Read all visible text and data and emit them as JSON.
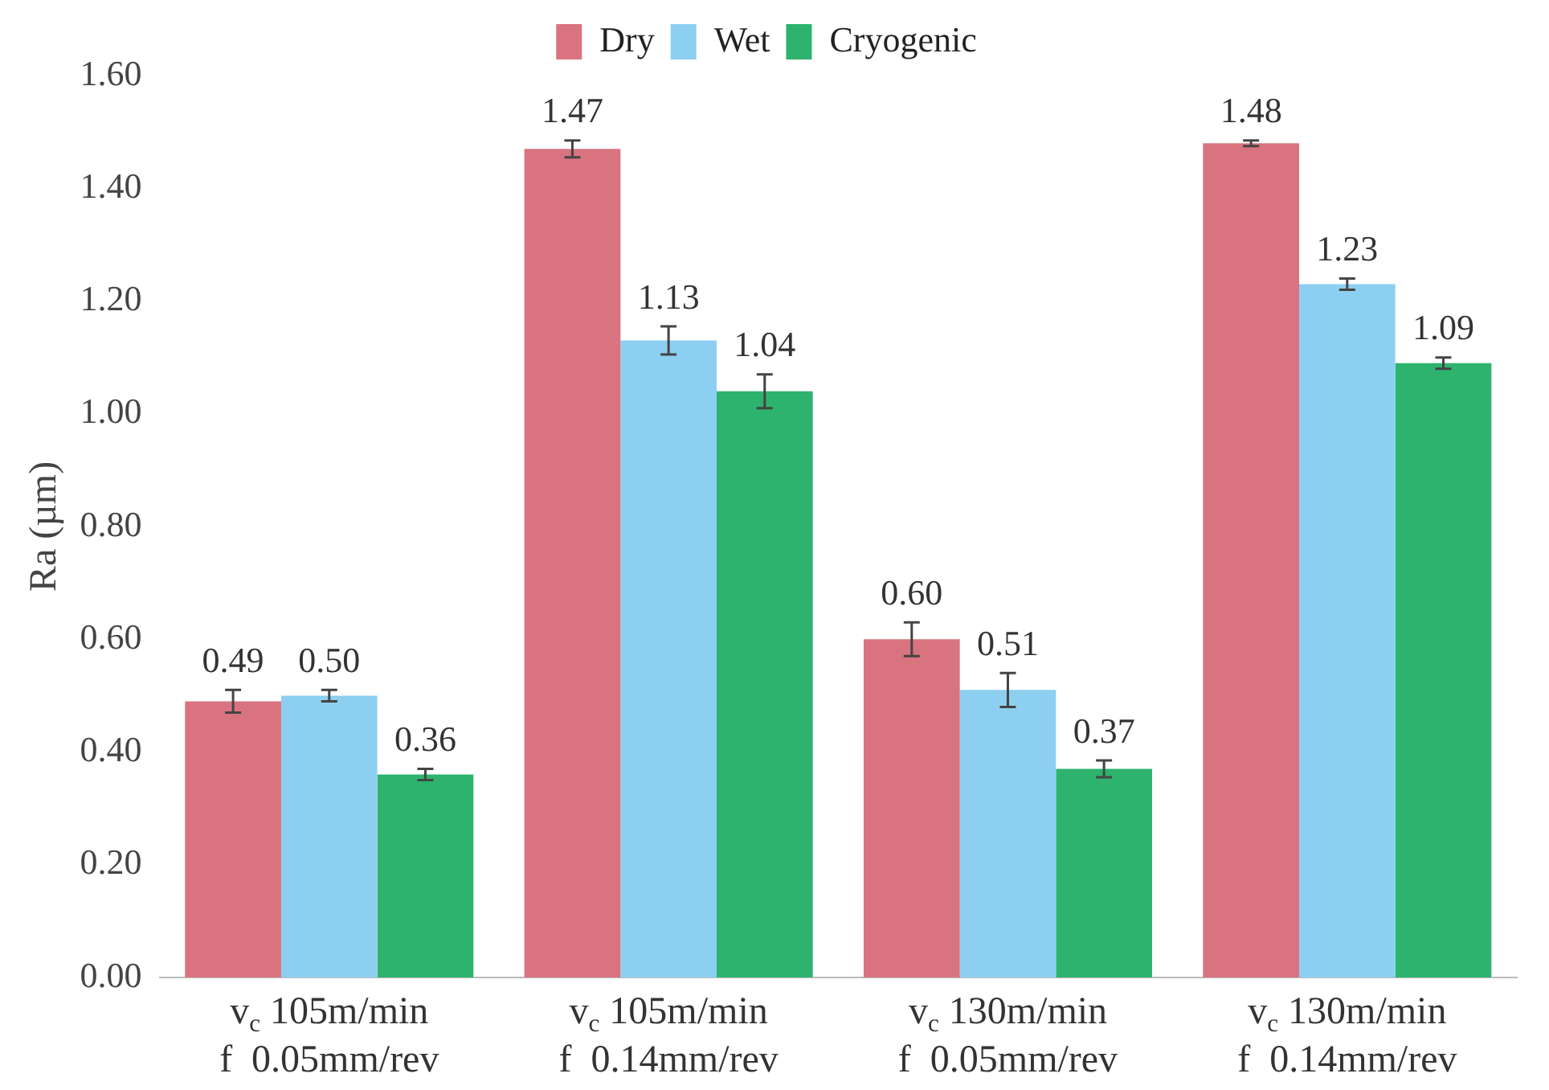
{
  "chart_data": {
    "type": "bar",
    "ylabel": "Ra (µm)",
    "categories": [
      "v$_{c}$ 105m/min\nf  0.05mm/rev",
      "v$_{c}$ 105m/min\nf  0.14mm/rev",
      "v$_{c}$ 130m/min\nf  0.05mm/rev",
      "v$_{c}$ 130m/min\nf  0.14mm/rev"
    ],
    "series": [
      {
        "name": "Dry",
        "color": "#d9737f",
        "values": [
          0.49,
          1.47,
          0.6,
          1.48
        ],
        "value_labels": [
          "0.49",
          "1.47",
          "0.60",
          "1.48"
        ],
        "errors": [
          0.02,
          0.015,
          0.03,
          0.005
        ]
      },
      {
        "name": "Wet",
        "color": "#8dcff0",
        "values": [
          0.5,
          1.13,
          0.51,
          1.23
        ],
        "value_labels": [
          "0.50",
          "1.13",
          "0.51",
          "1.23"
        ],
        "errors": [
          0.01,
          0.025,
          0.03,
          0.01
        ]
      },
      {
        "name": "Cryogenic",
        "color": "#2db36e",
        "values": [
          0.36,
          1.04,
          0.37,
          1.09
        ],
        "value_labels": [
          "0.36",
          "1.04",
          "0.37",
          "1.09"
        ],
        "errors": [
          0.01,
          0.03,
          0.015,
          0.01
        ]
      }
    ],
    "ylim": [
      0,
      1.6
    ],
    "yticks": [
      {
        "value": 0,
        "label": "0.00"
      },
      {
        "value": 0.2,
        "label": "0.20"
      },
      {
        "value": 0.4,
        "label": "0.40"
      },
      {
        "value": 0.6,
        "label": "0.60"
      },
      {
        "value": 0.8,
        "label": "0.80"
      },
      {
        "value": 1.0,
        "label": "1.00"
      },
      {
        "value": 1.2,
        "label": "1.20"
      },
      {
        "value": 1.4,
        "label": "1.40"
      },
      {
        "value": 1.6,
        "label": "1.60"
      }
    ],
    "grid": false,
    "legend": "top"
  }
}
